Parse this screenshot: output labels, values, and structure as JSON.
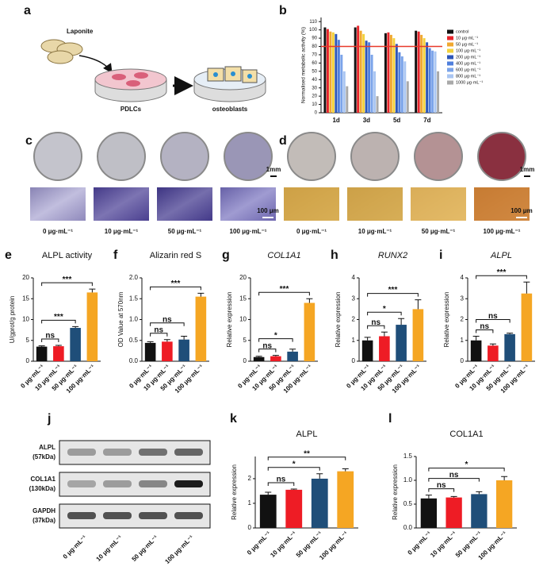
{
  "figure": {
    "a": {
      "label": "a",
      "material": "Laponite",
      "cells": "PDLCs",
      "result": "osteoblasts"
    },
    "c": {
      "label": "c",
      "scale_dish": "1mm",
      "scale_micro": "100 μm",
      "conditions": [
        "0 μg·mL⁻¹",
        "10 μg·mL⁻¹",
        "50 μg·mL⁻¹",
        "100 μg·mL⁻¹"
      ]
    },
    "d": {
      "label": "d",
      "scale_dish": "1mm",
      "scale_micro": "100 μm",
      "conditions": [
        "0 μg·mL⁻¹",
        "10 μg·mL⁻¹",
        "50 μg·mL⁻¹",
        "100 μg·mL⁻¹"
      ]
    },
    "j": {
      "label": "j",
      "bands": [
        {
          "name": "ALPL",
          "size": "(57kDa)"
        },
        {
          "name": "COL1A1",
          "size": "(130kDa)"
        },
        {
          "name": "GAPDH",
          "size": "(37kDa)"
        }
      ],
      "conditions": [
        "0 μg·mL⁻¹",
        "10 μg·mL⁻¹",
        "50 μg·mL⁻¹",
        "100 μg·mL⁻¹"
      ]
    }
  },
  "chart_data": [
    {
      "type": "bar",
      "label": "b",
      "y_label": "Normalised metabolic activity  (%)",
      "categories": [
        "1d",
        "3d",
        "5d",
        "7d"
      ],
      "ylim": [
        0,
        115
      ],
      "yticks": [
        0,
        10,
        20,
        30,
        40,
        50,
        60,
        70,
        80,
        90,
        100,
        110
      ],
      "hline": 80,
      "hline_color": "#e8392a",
      "series": [
        {
          "name": "control",
          "color": "#111111",
          "values": [
            103,
            103,
            96,
            99
          ]
        },
        {
          "name": "10 μg·mL⁻¹",
          "color": "#e8262c",
          "values": [
            101,
            105,
            97,
            98
          ]
        },
        {
          "name": "50 μg·mL⁻¹",
          "color": "#f0a830",
          "values": [
            98,
            99,
            94,
            94
          ]
        },
        {
          "name": "100 μg·mL⁻¹",
          "color": "#f3d23c",
          "values": [
            97,
            95,
            90,
            90
          ]
        },
        {
          "name": "200 μg·mL⁻¹",
          "color": "#2d56b8",
          "values": [
            95,
            87,
            83,
            85
          ]
        },
        {
          "name": "400 μg·mL⁻¹",
          "color": "#4f7fdc",
          "values": [
            88,
            85,
            73,
            78
          ]
        },
        {
          "name": "600 μg·mL⁻¹",
          "color": "#7ba4ea",
          "values": [
            70,
            70,
            68,
            75
          ]
        },
        {
          "name": "800 μg·mL⁻¹",
          "color": "#aac6f2",
          "values": [
            50,
            50,
            62,
            74
          ]
        },
        {
          "name": "1000 μg·mL⁻¹",
          "color": "#a9a9a9",
          "values": [
            32,
            20,
            38,
            50
          ]
        }
      ]
    },
    {
      "type": "bar",
      "label": "e",
      "title": "ALPL activity",
      "y_label": "U/gprot/g protein",
      "categories": [
        "0 μg·mL⁻¹",
        "10 μg·mL⁻¹",
        "50 μg·mL⁻¹",
        "100 μg·mL⁻¹"
      ],
      "colors": [
        "#111111",
        "#ee1c25",
        "#1f4e79",
        "#f5a623"
      ],
      "values": [
        3.5,
        3.6,
        8,
        16.5
      ],
      "errors": [
        0.2,
        0.2,
        0.3,
        0.8
      ],
      "ylim": [
        0,
        20
      ],
      "yticks": [
        0,
        5,
        10,
        15,
        20
      ],
      "brackets": [
        {
          "from": 0,
          "to": 1,
          "label": "ns"
        },
        {
          "from": 0,
          "to": 2,
          "label": "***"
        },
        {
          "from": 0,
          "to": 3,
          "label": "***"
        }
      ]
    },
    {
      "type": "bar",
      "label": "f",
      "title": "Alizarin red S",
      "y_label": "OD Value at 570nm",
      "categories": [
        "0 μg·mL⁻¹",
        "10 μg·mL⁻¹",
        "50 μg·mL⁻¹",
        "100 μg·mL⁻¹"
      ],
      "colors": [
        "#111111",
        "#ee1c25",
        "#1f4e79",
        "#f5a623"
      ],
      "values": [
        0.44,
        0.47,
        0.52,
        1.55
      ],
      "errors": [
        0.03,
        0.05,
        0.08,
        0.08
      ],
      "ylim": [
        0,
        2
      ],
      "yticks": [
        {
          "value": 0,
          "label": "0.0"
        },
        0.5,
        {
          "value": 1,
          "label": "1.0"
        },
        1.5,
        {
          "value": 2,
          "label": "2.0"
        }
      ],
      "brackets": [
        {
          "from": 0,
          "to": 1,
          "label": "ns"
        },
        {
          "from": 0,
          "to": 2,
          "label": "ns"
        },
        {
          "from": 0,
          "to": 3,
          "label": "***"
        }
      ]
    },
    {
      "type": "bar",
      "label": "g",
      "title": "COL1A1",
      "title_italic": true,
      "y_label": "Relative expression",
      "categories": [
        "0 μg·mL⁻¹",
        "10 μg·mL⁻¹",
        "50 μg·mL⁻¹",
        "100 μg·mL⁻¹"
      ],
      "colors": [
        "#111111",
        "#ee1c25",
        "#1f4e79",
        "#f5a623"
      ],
      "values": [
        1,
        1.2,
        2.3,
        14
      ],
      "errors": [
        0.2,
        0.2,
        0.6,
        1
      ],
      "ylim": [
        0,
        20
      ],
      "yticks": [
        0,
        5,
        10,
        15,
        20
      ],
      "brackets": [
        {
          "from": 0,
          "to": 1,
          "label": "ns"
        },
        {
          "from": 0,
          "to": 2,
          "label": "*"
        },
        {
          "from": 0,
          "to": 3,
          "label": "***"
        }
      ]
    },
    {
      "type": "bar",
      "label": "h",
      "title": "RUNX2",
      "title_italic": true,
      "y_label": "Relative expression",
      "categories": [
        "0 μg·mL⁻¹",
        "10 μg·mL⁻¹",
        "50 μg·mL⁻¹",
        "100 μg·mL⁻¹"
      ],
      "colors": [
        "#111111",
        "#ee1c25",
        "#1f4e79",
        "#f5a623"
      ],
      "values": [
        1,
        1.2,
        1.75,
        2.5
      ],
      "errors": [
        0.15,
        0.2,
        0.3,
        0.45
      ],
      "ylim": [
        0,
        4
      ],
      "yticks": [
        0,
        1,
        2,
        3,
        4
      ],
      "brackets": [
        {
          "from": 0,
          "to": 1,
          "label": "ns"
        },
        {
          "from": 0,
          "to": 2,
          "label": "*"
        },
        {
          "from": 0,
          "to": 3,
          "label": "***"
        }
      ]
    },
    {
      "type": "bar",
      "label": "i",
      "title": "ALPL",
      "title_italic": true,
      "y_label": "Relative expression",
      "categories": [
        "0 μg·mL⁻¹",
        "10 μg·mL⁻¹",
        "50 μg·mL⁻¹",
        "100 μg·mL⁻¹"
      ],
      "colors": [
        "#111111",
        "#ee1c25",
        "#1f4e79",
        "#f5a623"
      ],
      "values": [
        1,
        0.75,
        1.3,
        3.25
      ],
      "errors": [
        0.2,
        0.08,
        0.05,
        0.55
      ],
      "ylim": [
        0,
        4
      ],
      "yticks": [
        0,
        1,
        2,
        3,
        4
      ],
      "brackets": [
        {
          "from": 0,
          "to": 1,
          "label": "ns"
        },
        {
          "from": 0,
          "to": 2,
          "label": "ns"
        },
        {
          "from": 0,
          "to": 3,
          "label": "***"
        }
      ]
    },
    {
      "type": "bar",
      "label": "k",
      "title": "ALPL",
      "y_label": "Relative expression",
      "categories": [
        "0 μg·mL⁻¹",
        "10 μg·mL⁻¹",
        "50 μg·mL⁻¹",
        "100 μg·mL⁻¹"
      ],
      "colors": [
        "#111111",
        "#ee1c25",
        "#1f4e79",
        "#f5a623"
      ],
      "values": [
        1.35,
        1.55,
        2.0,
        2.3
      ],
      "errors": [
        0.1,
        0.03,
        0.2,
        0.1
      ],
      "ylim": [
        0,
        2.9
      ],
      "yticks": [
        0,
        1,
        2
      ],
      "brackets": [
        {
          "from": 0,
          "to": 1,
          "label": "ns"
        },
        {
          "from": 0,
          "to": 2,
          "label": "*"
        },
        {
          "from": 0,
          "to": 3,
          "label": "**"
        }
      ]
    },
    {
      "type": "bar",
      "label": "l",
      "title": "COL1A1",
      "y_label": "Relative expression",
      "categories": [
        "0 μg·mL⁻¹",
        "10 μg·mL⁻¹",
        "50 μg·mL⁻¹",
        "100 μg·mL⁻¹"
      ],
      "colors": [
        "#111111",
        "#ee1c25",
        "#1f4e79",
        "#f5a623"
      ],
      "values": [
        0.62,
        0.64,
        0.71,
        1.0
      ],
      "errors": [
        0.07,
        0.02,
        0.05,
        0.08
      ],
      "ylim": [
        0,
        1.5
      ],
      "yticks": [
        {
          "value": 0,
          "label": "0.0"
        },
        0.5,
        {
          "value": 1,
          "label": "1.0"
        },
        1.5
      ],
      "brackets": [
        {
          "from": 0,
          "to": 1,
          "label": "ns"
        },
        {
          "from": 0,
          "to": 2,
          "label": "ns"
        },
        {
          "from": 0,
          "to": 3,
          "label": "*"
        }
      ]
    }
  ]
}
